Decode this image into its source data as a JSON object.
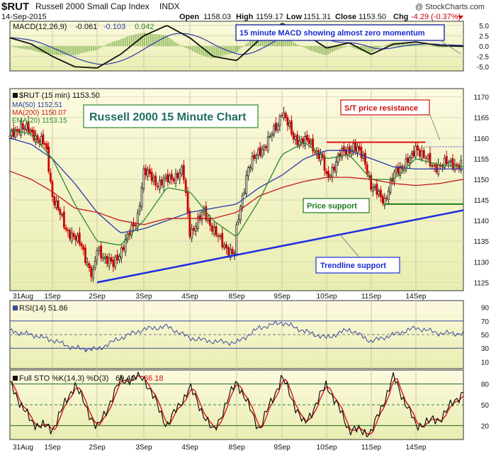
{
  "header": {
    "symbol": "$RUT",
    "name": "Russell 2000 Small Cap Index",
    "exchange": "INDX",
    "watermark": "@ StockCharts.com",
    "date": "14-Sep-2015",
    "open_label": "Open",
    "open": "1158.03",
    "high_label": "High",
    "high": "1159.17",
    "low_label": "Low",
    "low": "1151.31",
    "close_label": "Close",
    "close": "1153.50",
    "chg_label": "Chg",
    "chg": "-4.29 (-0.37%)"
  },
  "colors": {
    "plot_bg_top": "#fdfae0",
    "plot_bg_bottom": "#ecf0b4",
    "up_candle": "#222222",
    "down_candle": "#cc0000",
    "ma50": "#2a3aa8",
    "ma200": "#c41a1a",
    "ema20": "#2c8a2c",
    "trendline": "#1a2ee0",
    "support": "#1c7a1c",
    "resistance": "#e01010",
    "rsi": "#3a4a9a",
    "stok": "#111111",
    "stod": "#e02020"
  },
  "macd_panel": {
    "legend_label": "MACD(12,26,9)",
    "macd": "-0.061",
    "signal": "-0.103",
    "hist": "0.042",
    "annotation": "15 minute MACD showing almost zero momentum",
    "y_ticks": [
      "5.0",
      "2.5",
      "0.0",
      "-2.5",
      "-5.0"
    ]
  },
  "price_panel": {
    "legend_price": "$RUT (15 min) 1153.50",
    "legend_ma50": "MA(50) 1152.51",
    "legend_ma200": "MA(200) 1150.07",
    "legend_ema20": "EMA(20) 1153.15",
    "title_box": "Russell 2000 15 Minute Chart",
    "resistance_label": "S/T price resistance",
    "support_label": "Price support",
    "trendline_label": "Trendline support",
    "y_ticks": [
      "1170",
      "1165",
      "1160",
      "1155",
      "1150",
      "1145",
      "1140",
      "1135",
      "1130",
      "1125"
    ]
  },
  "x_labels": [
    "31Aug",
    "1Sep",
    "2Sep",
    "3Sep",
    "4Sep",
    "8Sep",
    "9Sep",
    "10Sep",
    "11Sep",
    "14Sep"
  ],
  "rsi_panel": {
    "legend": "RSI(14) 51.86",
    "y_ticks": [
      "90",
      "70",
      "50",
      "30",
      "10"
    ]
  },
  "sto_panel": {
    "legend_label": "Full STO %K(14,3) %D(3)",
    "k": "69.41",
    "d": "66.18",
    "y_ticks": [
      "80",
      "50",
      "20"
    ]
  },
  "chart_data": {
    "type": "candlestick",
    "title": "Russell 2000 15 Minute Chart",
    "period": "15 min",
    "x": [
      "31Aug",
      "1Sep",
      "2Sep",
      "3Sep",
      "4Sep",
      "8Sep",
      "9Sep",
      "10Sep",
      "11Sep",
      "14Sep"
    ],
    "ylim": [
      1123,
      1172
    ],
    "close_series": {
      "name": "$RUT",
      "x_days": [
        0.0,
        0.25,
        0.55,
        0.85,
        1.0,
        1.3,
        1.65,
        1.9,
        2.0,
        2.35,
        2.6,
        2.85,
        3.0,
        3.3,
        3.55,
        3.85,
        4.0,
        4.3,
        4.7,
        4.95,
        5.0,
        5.25,
        5.6,
        5.9,
        6.0,
        6.25,
        6.6,
        6.9,
        7.0,
        7.3,
        7.6,
        7.85,
        8.0,
        8.3,
        8.55,
        8.9,
        9.0,
        9.35,
        9.7,
        9.95
      ],
      "values": [
        1160,
        1163,
        1161,
        1158,
        1146,
        1138,
        1134,
        1126,
        1133,
        1129,
        1135,
        1140,
        1152,
        1149,
        1150,
        1152,
        1137,
        1142,
        1134,
        1132,
        1138,
        1153,
        1158,
        1163,
        1167,
        1160,
        1159,
        1155,
        1150,
        1156,
        1158,
        1155,
        1148,
        1145,
        1152,
        1155,
        1158,
        1153,
        1154,
        1153.5
      ]
    },
    "moving_averages": [
      {
        "name": "MA(50)",
        "x_days": [
          0,
          0.5,
          1,
          1.5,
          2,
          2.5,
          3,
          3.5,
          4,
          4.5,
          5,
          5.5,
          6,
          6.5,
          7,
          7.5,
          8,
          8.5,
          9,
          9.5,
          10
        ],
        "values": [
          1160,
          1158.5,
          1155,
          1149,
          1142,
          1137,
          1138,
          1140,
          1142,
          1143,
          1144,
          1148,
          1151,
          1155,
          1157,
          1157,
          1155,
          1153,
          1152.5,
          1152.5,
          1152.5
        ]
      },
      {
        "name": "MA(200)",
        "x_days": [
          0,
          0.5,
          1,
          1.5,
          2,
          2.5,
          3,
          3.5,
          4,
          4.5,
          5,
          5.5,
          6,
          6.5,
          7,
          7.5,
          8,
          8.5,
          9,
          9.5,
          10
        ],
        "values": [
          1152,
          1150,
          1147,
          1143,
          1142,
          1140,
          1139,
          1140.5,
          1140.5,
          1140.5,
          1142,
          1146,
          1148,
          1149.5,
          1150.5,
          1150.5,
          1150,
          1149,
          1148.5,
          1149,
          1150
        ]
      },
      {
        "name": "EMA(20)",
        "x_days": [
          0,
          0.5,
          1,
          1.5,
          2,
          2.5,
          3,
          3.5,
          4,
          4.5,
          5,
          5.5,
          6,
          6.5,
          7,
          7.5,
          8,
          8.5,
          9,
          9.5,
          10
        ],
        "values": [
          1162,
          1161,
          1155,
          1144,
          1135,
          1134,
          1140,
          1148,
          1147,
          1140,
          1136,
          1145,
          1156,
          1159,
          1155,
          1156,
          1150,
          1150,
          1155,
          1153.5,
          1153
        ]
      }
    ],
    "lines": [
      {
        "name": "S/T price resistance",
        "x_days": [
          7.0,
          9.2
        ],
        "values": [
          1159,
          1159
        ]
      },
      {
        "name": "Price support",
        "x_days": [
          8.3,
          10.0
        ],
        "values": [
          1144,
          1144
        ]
      },
      {
        "name": "Trendline support",
        "x_days": [
          2.0,
          10.0
        ],
        "values": [
          1125,
          1142.5
        ]
      }
    ],
    "macd": {
      "ylim": [
        -6,
        6
      ],
      "x_days": [
        0,
        0.5,
        1,
        1.5,
        2,
        2.5,
        3,
        3.5,
        4,
        4.5,
        5,
        5.5,
        6,
        6.5,
        7,
        7.5,
        8,
        8.5,
        9,
        9.5,
        10
      ],
      "values": [
        2.0,
        0.5,
        -2.5,
        -5.0,
        -5.3,
        -2.0,
        2.5,
        5.0,
        2.0,
        -2.5,
        -3.5,
        1.5,
        5.5,
        3.0,
        -0.5,
        0.8,
        -2.0,
        0.5,
        1.0,
        0.1,
        -0.06
      ]
    },
    "rsi": {
      "ylim": [
        0,
        100
      ],
      "x_days": [
        0,
        0.5,
        1,
        1.5,
        2,
        2.5,
        3,
        3.5,
        4,
        4.5,
        5,
        5.5,
        6,
        6.5,
        7,
        7.5,
        8,
        8.5,
        9,
        9.5,
        10
      ],
      "values": [
        55,
        50,
        42,
        30,
        28,
        45,
        58,
        62,
        45,
        40,
        38,
        60,
        68,
        55,
        45,
        58,
        40,
        50,
        60,
        52,
        51.86
      ]
    },
    "stochastic": {
      "ylim": [
        0,
        100
      ],
      "x_days": [
        0,
        0.5,
        1,
        1.5,
        2,
        2.5,
        3,
        3.5,
        4,
        4.5,
        5,
        5.5,
        6,
        6.5,
        7,
        7.5,
        8,
        8.5,
        9,
        9.5,
        10
      ],
      "values": [
        80,
        25,
        15,
        80,
        15,
        85,
        90,
        20,
        75,
        10,
        85,
        15,
        90,
        20,
        80,
        15,
        10,
        90,
        20,
        30,
        69.41
      ]
    }
  }
}
